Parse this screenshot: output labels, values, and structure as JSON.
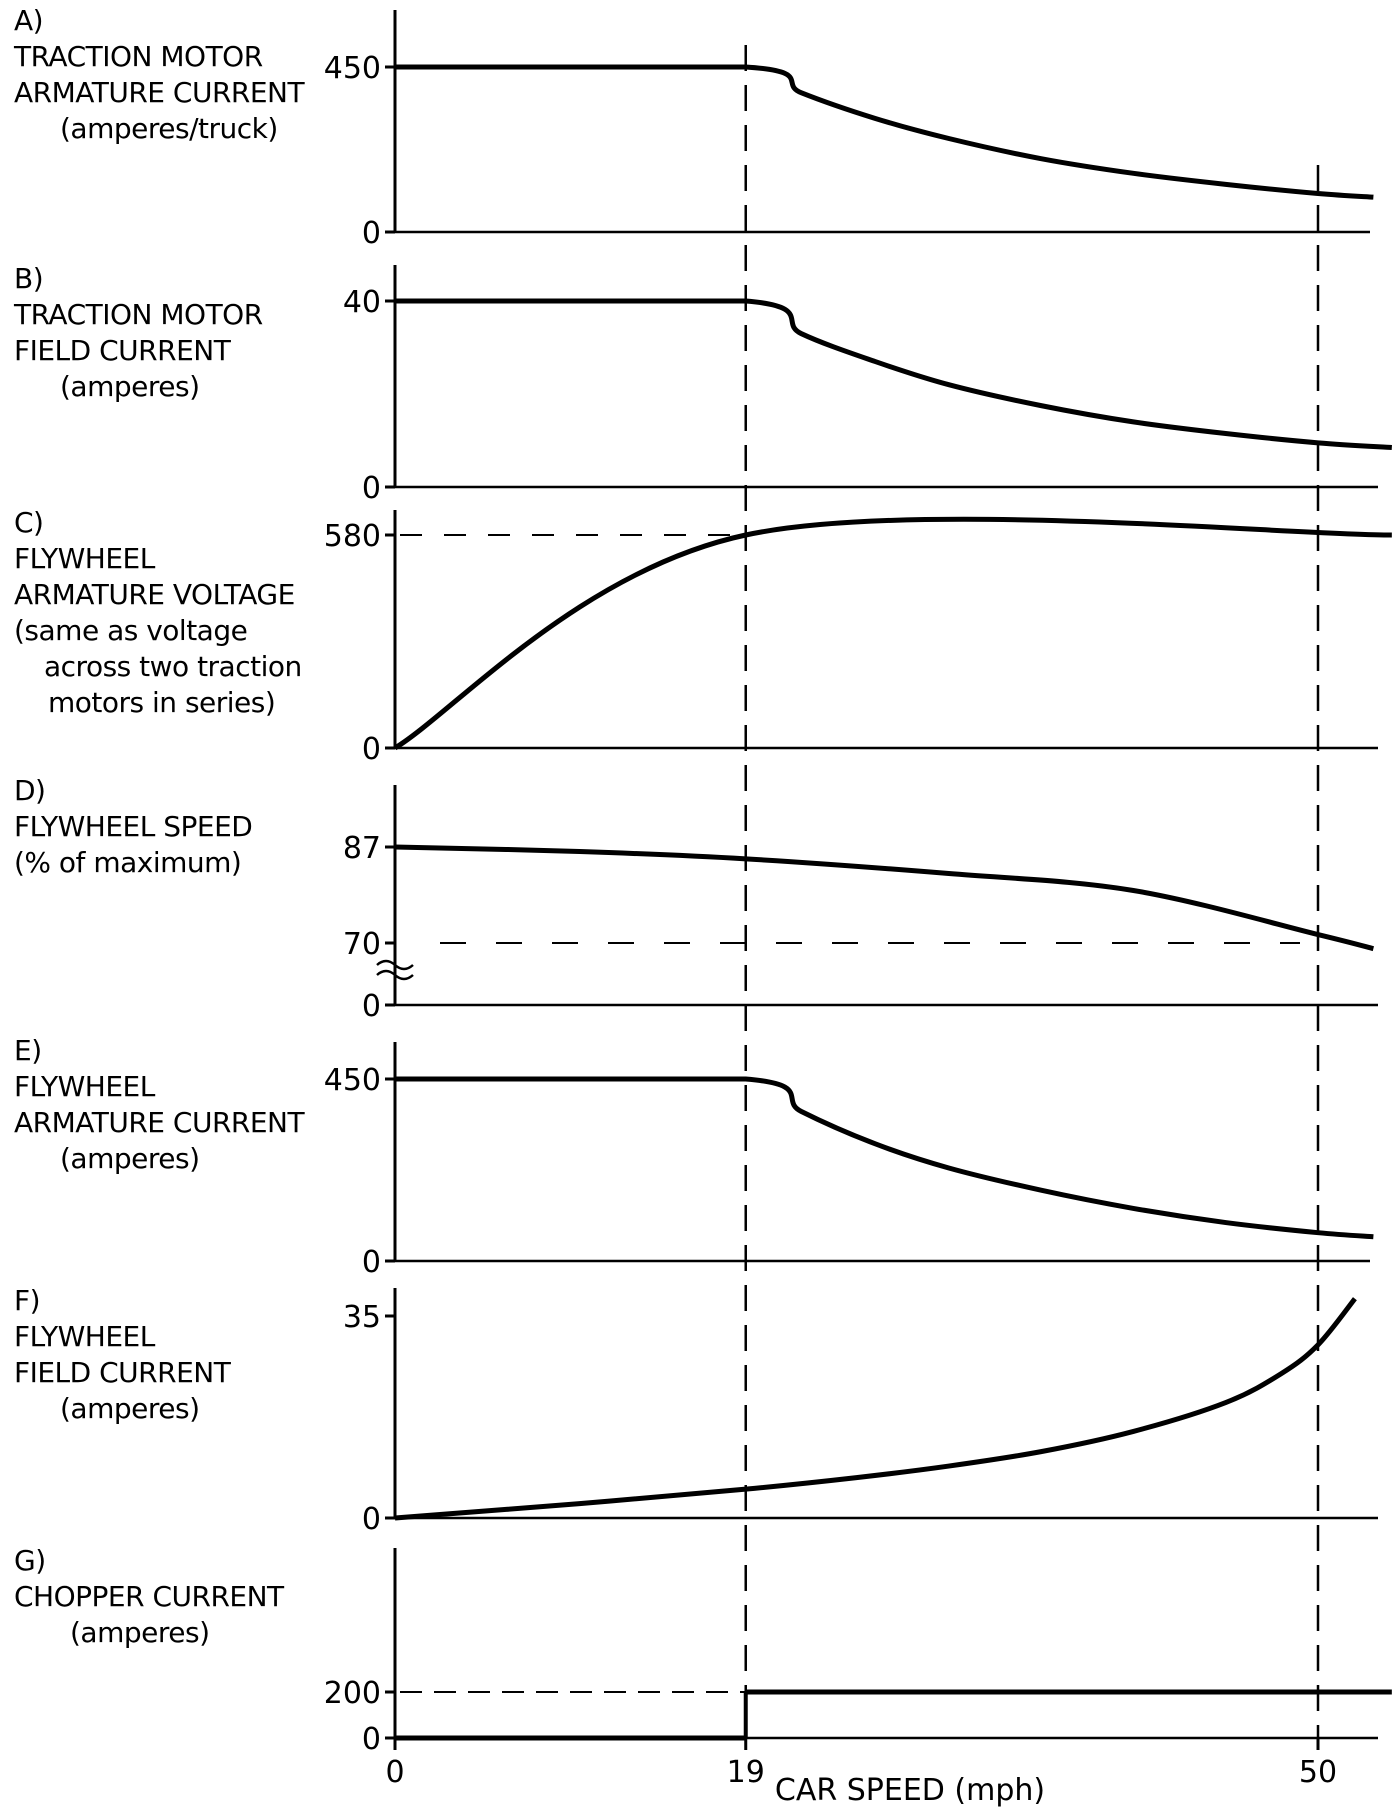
{
  "chart_data": [
    {
      "type": "line",
      "panel": "A)",
      "ylabel_lines": [
        "TRACTION MOTOR",
        "ARMATURE CURRENT",
        "(amperes/truck)"
      ],
      "yticks": [
        {
          "v": 0,
          "label": "0"
        },
        {
          "v": 450,
          "label": "450"
        }
      ],
      "ylim": [
        0,
        450
      ],
      "x": [
        0,
        19,
        22,
        26,
        30,
        35,
        40,
        45,
        50,
        53
      ],
      "y": [
        450,
        450,
        380,
        310,
        255,
        200,
        160,
        130,
        105,
        95
      ],
      "hlines": []
    },
    {
      "type": "line",
      "panel": "B)",
      "ylabel_lines": [
        "TRACTION MOTOR",
        "FIELD CURRENT",
        "(amperes)"
      ],
      "yticks": [
        {
          "v": 0,
          "label": "0"
        },
        {
          "v": 40,
          "label": "40"
        }
      ],
      "ylim": [
        0,
        40
      ],
      "x": [
        0,
        19,
        22,
        26,
        30,
        35,
        40,
        45,
        50,
        54
      ],
      "y": [
        40,
        40,
        33,
        27,
        22,
        17.5,
        14,
        11.5,
        9.5,
        8.5
      ],
      "hlines": []
    },
    {
      "type": "line",
      "panel": "C)",
      "ylabel_lines": [
        "FLYWHEEL",
        "ARMATURE VOLTAGE",
        "(same as voltage",
        "across two traction",
        "motors in series)"
      ],
      "yticks": [
        {
          "v": 0,
          "label": "0"
        },
        {
          "v": 580,
          "label": "580"
        }
      ],
      "ylim": [
        0,
        580
      ],
      "x": [
        0,
        19,
        54
      ],
      "y": [
        0,
        580,
        580
      ],
      "hlines": [
        580
      ]
    },
    {
      "type": "line",
      "panel": "D)",
      "ylabel_lines": [
        "FLYWHEEL SPEED",
        "(% of maximum)"
      ],
      "yticks": [
        {
          "v": 70,
          "label": "70"
        },
        {
          "v": 87,
          "label": "87"
        }
      ],
      "ylim": [
        70,
        87
      ],
      "axis_break": true,
      "zero_label": "0",
      "x": [
        0,
        10,
        19,
        30,
        40,
        50,
        53
      ],
      "y": [
        87,
        86.2,
        84.9,
        82.3,
        79.3,
        71.5,
        69
      ],
      "hlines": [
        70
      ]
    },
    {
      "type": "line",
      "panel": "E)",
      "ylabel_lines": [
        "FLYWHEEL",
        "ARMATURE CURRENT",
        "(amperes)"
      ],
      "yticks": [
        {
          "v": 0,
          "label": "0"
        },
        {
          "v": 450,
          "label": "450"
        }
      ],
      "ylim": [
        0,
        450
      ],
      "x": [
        0,
        19,
        22,
        26,
        30,
        35,
        40,
        45,
        50,
        53
      ],
      "y": [
        450,
        450,
        370,
        290,
        230,
        175,
        130,
        95,
        70,
        60
      ],
      "hlines": []
    },
    {
      "type": "line",
      "panel": "F)",
      "ylabel_lines": [
        "FLYWHEEL",
        "FIELD CURRENT",
        "(amperes)"
      ],
      "yticks": [
        {
          "v": 0,
          "label": "0"
        },
        {
          "v": 35,
          "label": "35"
        }
      ],
      "ylim": [
        0,
        35
      ],
      "x": [
        0,
        10,
        19,
        25,
        30,
        35,
        40,
        45,
        48,
        50,
        52
      ],
      "y": [
        0,
        2.5,
        5,
        7,
        9,
        11.5,
        15,
        20,
        25,
        30,
        38
      ],
      "hlines": []
    },
    {
      "type": "line",
      "panel": "G)",
      "ylabel_lines": [
        "CHOPPER CURRENT",
        "(amperes)"
      ],
      "yticks": [
        {
          "v": 0,
          "label": "0"
        },
        {
          "v": 200,
          "label": "200"
        }
      ],
      "ylim": [
        0,
        200
      ],
      "segments": [
        {
          "x": [
            0,
            19
          ],
          "y": [
            0,
            0
          ]
        },
        {
          "x": [
            19,
            54
          ],
          "y": [
            200,
            200
          ]
        }
      ],
      "hlines": [
        200
      ]
    }
  ],
  "x_axis": {
    "ticks": [
      {
        "v": 0,
        "label": "0"
      },
      {
        "v": 19,
        "label": "19"
      },
      {
        "v": 50,
        "label": "50"
      }
    ],
    "label": "CAR SPEED (mph)",
    "xlim": [
      0,
      54
    ],
    "markers": [
      19,
      50
    ]
  }
}
